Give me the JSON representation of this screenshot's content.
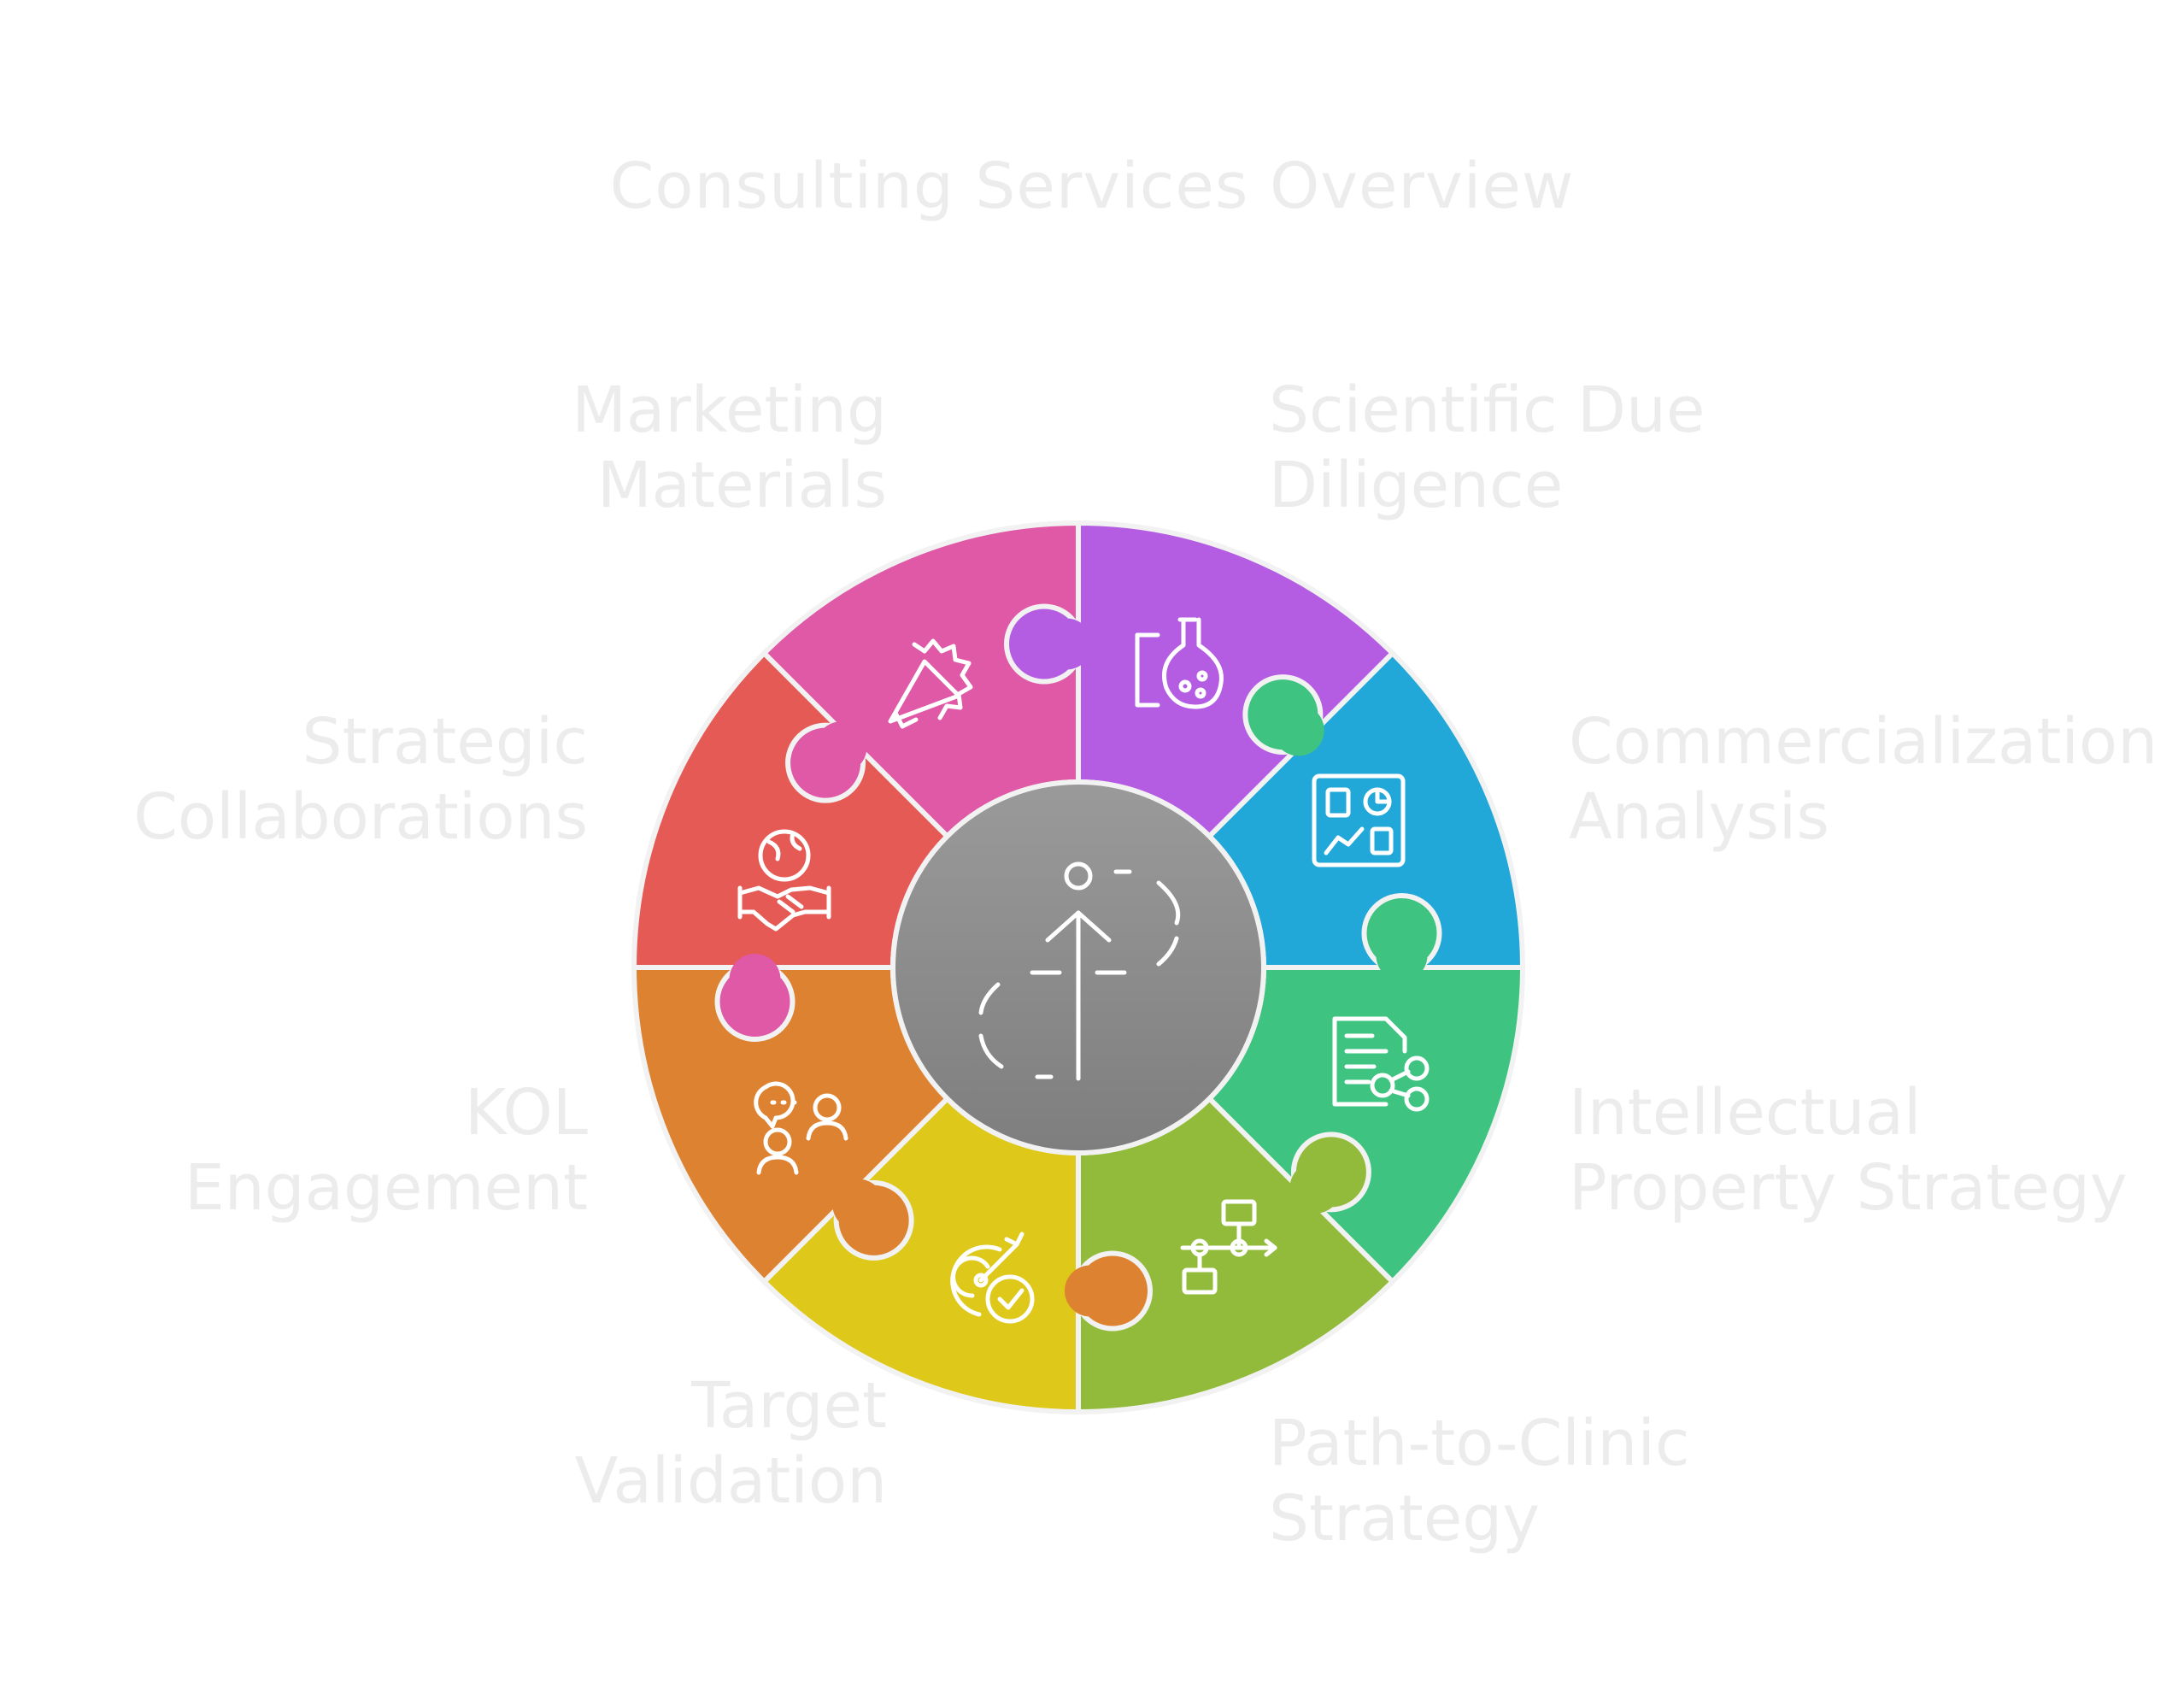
{
  "title": "Consulting Services Overview",
  "segments": [
    {
      "name": "Marketing Materials",
      "lines": [
        "Marketing",
        "Materials"
      ],
      "color": "#b55de2",
      "icon": "megaphone-icon"
    },
    {
      "name": "Scientific Due Diligence",
      "lines": [
        "Scientific Due",
        "Diligence"
      ],
      "color": "#21a8d9",
      "icon": "lab-flask-icon"
    },
    {
      "name": "Commercialization Analysis",
      "lines": [
        "Commercialization",
        "Analysis"
      ],
      "color": "#3fc381",
      "icon": "dashboard-chart-icon"
    },
    {
      "name": "Intellectual Property Strategy",
      "lines": [
        "Intellectual",
        "Property Strategy"
      ],
      "color": "#93bb3b",
      "icon": "document-share-icon"
    },
    {
      "name": "Path-to-Clinic Strategy",
      "lines": [
        "Path-to-Clinic",
        "Strategy"
      ],
      "color": "#dec81a",
      "icon": "flowchart-icon"
    },
    {
      "name": "Target Validation",
      "lines": [
        "Target",
        "Validation"
      ],
      "color": "#dd8231",
      "icon": "target-check-icon"
    },
    {
      "name": "KOL Engagement",
      "lines": [
        "KOL",
        "Engagement"
      ],
      "color": "#e55a55",
      "icon": "people-chat-icon"
    },
    {
      "name": "Strategic Collaborations",
      "lines": [
        "Strategic",
        "Collaborations"
      ],
      "color": "#df59a6",
      "icon": "handshake-globe-icon"
    }
  ],
  "center": {
    "icon": "growth-path-icon",
    "color_top": "#9a9a9a",
    "color_bottom": "#7e7e7e"
  }
}
